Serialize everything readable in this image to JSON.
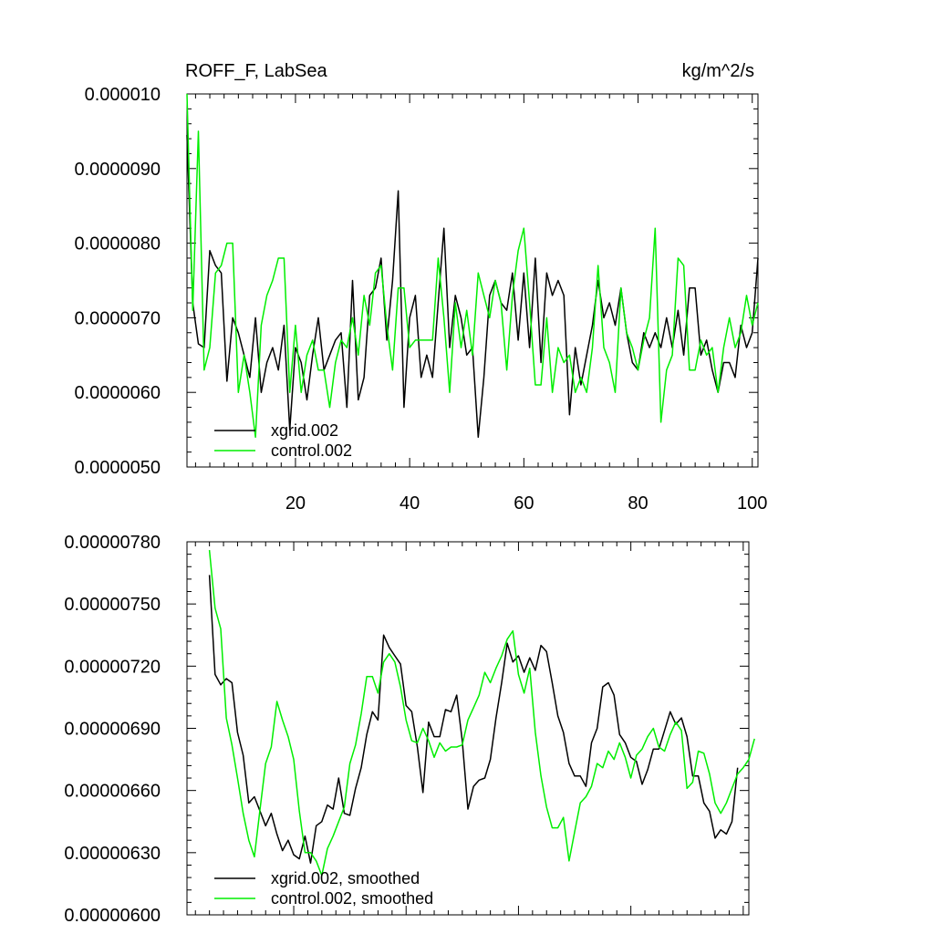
{
  "colors": {
    "xgrid": "#000000",
    "control": "#00ee00"
  },
  "chart_data": [
    {
      "type": "line",
      "title": "ROFF_F, LabSea",
      "units": "kg/m^2/s",
      "xlim": [
        1,
        101
      ],
      "ylim": [
        5e-06,
        1e-05
      ],
      "xticks": [
        20,
        40,
        60,
        80,
        100
      ],
      "xtick_labels": [
        "20",
        "40",
        "60",
        "80",
        "100"
      ],
      "yticks": [
        5e-06,
        6e-06,
        7e-06,
        8e-06,
        9e-06,
        1e-05
      ],
      "ytick_labels": [
        "0.0000050",
        "0.0000060",
        "0.0000070",
        "0.0000080",
        "0.0000090",
        "0.000010"
      ],
      "legend": "bottom-left",
      "series": [
        {
          "name": "xgrid.002",
          "color": "#000000",
          "x_start": 1,
          "values": [
            9.45e-06,
            7.2e-06,
            6.65e-06,
            6.6e-06,
            7.9e-06,
            7.7e-06,
            7.6e-06,
            6.15e-06,
            7e-06,
            6.8e-06,
            6.5e-06,
            6.2e-06,
            7e-06,
            6e-06,
            6.4e-06,
            6.6e-06,
            6.3e-06,
            6.9e-06,
            5.5e-06,
            6.6e-06,
            6.4e-06,
            5.9e-06,
            6.5e-06,
            7e-06,
            6.3e-06,
            6.5e-06,
            6.7e-06,
            6.8e-06,
            5.8e-06,
            7.5e-06,
            5.9e-06,
            6.2e-06,
            7.3e-06,
            7.4e-06,
            7.8e-06,
            6.7e-06,
            7.5e-06,
            8.7e-06,
            5.8e-06,
            7e-06,
            7.3e-06,
            6.2e-06,
            6.5e-06,
            6.2e-06,
            7.2e-06,
            8.2e-06,
            6.6e-06,
            7.3e-06,
            7e-06,
            6.5e-06,
            6.6e-06,
            5.4e-06,
            6.2e-06,
            7.3e-06,
            7.5e-06,
            7.2e-06,
            7.1e-06,
            7.6e-06,
            6.7e-06,
            7.6e-06,
            6.6e-06,
            7.8e-06,
            6.4e-06,
            7.6e-06,
            7.3e-06,
            7.5e-06,
            7.3e-06,
            5.7e-06,
            6.6e-06,
            6.1e-06,
            6.5e-06,
            6.9e-06,
            7.5e-06,
            7e-06,
            7.2e-06,
            6.9e-06,
            7.4e-06,
            6.8e-06,
            6.4e-06,
            6.3e-06,
            6.8e-06,
            6.6e-06,
            6.8e-06,
            6.6e-06,
            7e-06,
            6.6e-06,
            7.1e-06,
            6.5e-06,
            7.4e-06,
            7.4e-06,
            6.5e-06,
            6.7e-06,
            6.3e-06,
            6e-06,
            6.4e-06,
            6.4e-06,
            6.2e-06,
            6.9e-06,
            6.6e-06,
            6.8e-06,
            7.8e-06
          ]
        },
        {
          "name": "control.002",
          "color": "#00ee00",
          "x_start": 1,
          "values": [
            1e-05,
            7.1e-06,
            9.5e-06,
            6.3e-06,
            6.6e-06,
            7.6e-06,
            7.7e-06,
            8e-06,
            8e-06,
            6e-06,
            6.5e-06,
            6e-06,
            5.4e-06,
            6.9e-06,
            7.3e-06,
            7.5e-06,
            7.8e-06,
            7.8e-06,
            6e-06,
            6.9e-06,
            6e-06,
            6.5e-06,
            6.7e-06,
            6.3e-06,
            6.3e-06,
            5.8e-06,
            6.4e-06,
            6.7e-06,
            6.6e-06,
            7e-06,
            6.5e-06,
            7.3e-06,
            6.9e-06,
            7.6e-06,
            7.7e-06,
            6.9e-06,
            6.3e-06,
            7.4e-06,
            7.4e-06,
            6.6e-06,
            6.7e-06,
            6.7e-06,
            6.7e-06,
            6.7e-06,
            7.8e-06,
            7e-06,
            6e-06,
            7.2e-06,
            6.6e-06,
            7.1e-06,
            6.5e-06,
            7.6e-06,
            7.3e-06,
            7e-06,
            7.5e-06,
            7.2e-06,
            6.3e-06,
            7.3e-06,
            7.9e-06,
            8.2e-06,
            7.2e-06,
            6.1e-06,
            6.1e-06,
            7e-06,
            6e-06,
            6.6e-06,
            6.4e-06,
            6.5e-06,
            6e-06,
            6.2e-06,
            6e-06,
            6.6e-06,
            7.7e-06,
            6.6e-06,
            6.4e-06,
            6e-06,
            7.4e-06,
            6.8e-06,
            6.6e-06,
            6.3e-06,
            6.7e-06,
            7e-06,
            8.2e-06,
            5.6e-06,
            6.3e-06,
            6.5e-06,
            7.8e-06,
            7.7e-06,
            6.3e-06,
            6.3e-06,
            6.7e-06,
            6.5e-06,
            6.6e-06,
            6e-06,
            6.6e-06,
            7e-06,
            6.6e-06,
            6.8e-06,
            7.3e-06,
            6.9e-06,
            7.2e-06
          ]
        }
      ]
    },
    {
      "type": "line",
      "title": "",
      "xlim": [
        1,
        101
      ],
      "ylim": [
        6e-06,
        7.8e-06
      ],
      "xticks": [
        20,
        40,
        60,
        80,
        100
      ],
      "xtick_labels": [],
      "yticks": [
        6e-06,
        6.3e-06,
        6.6e-06,
        6.9e-06,
        7.2e-06,
        7.5e-06,
        7.8e-06
      ],
      "ytick_labels": [
        "0.00000600",
        "0.00000630",
        "0.00000660",
        "0.00000690",
        "0.00000720",
        "0.00000750",
        "0.00000780"
      ],
      "legend": "bottom-left",
      "series": [
        {
          "name": "xgrid.002, smoothed",
          "color": "#000000",
          "x_start": 5,
          "values": [
            7.64e-06,
            7.16e-06,
            7.11e-06,
            7.14e-06,
            7.12e-06,
            6.88e-06,
            6.77e-06,
            6.54e-06,
            6.57e-06,
            6.5e-06,
            6.43e-06,
            6.49e-06,
            6.39e-06,
            6.31e-06,
            6.36e-06,
            6.29e-06,
            6.27e-06,
            6.38e-06,
            6.25e-06,
            6.43e-06,
            6.45e-06,
            6.53e-06,
            6.51e-06,
            6.66e-06,
            6.49e-06,
            6.48e-06,
            6.61e-06,
            6.71e-06,
            6.87e-06,
            6.98e-06,
            6.94e-06,
            7.35e-06,
            7.29e-06,
            7.25e-06,
            7.21e-06,
            7.01e-06,
            6.98e-06,
            6.81e-06,
            6.59e-06,
            6.93e-06,
            6.86e-06,
            6.86e-06,
            6.99e-06,
            6.98e-06,
            7.06e-06,
            6.84e-06,
            6.51e-06,
            6.62e-06,
            6.65e-06,
            6.66e-06,
            6.75e-06,
            6.95e-06,
            7.12e-06,
            7.31e-06,
            7.22e-06,
            7.25e-06,
            7.17e-06,
            7.24e-06,
            7.18e-06,
            7.3e-06,
            7.27e-06,
            7.12e-06,
            6.96e-06,
            6.88e-06,
            6.73e-06,
            6.67e-06,
            6.67e-06,
            6.62e-06,
            6.83e-06,
            6.9e-06,
            7.1e-06,
            7.12e-06,
            7.06e-06,
            6.87e-06,
            6.83e-06,
            6.76e-06,
            6.74e-06,
            6.63e-06,
            6.7e-06,
            6.8e-06,
            6.8e-06,
            6.89e-06,
            6.98e-06,
            6.92e-06,
            6.95e-06,
            6.86e-06,
            6.67e-06,
            6.67e-06,
            6.54e-06,
            6.5e-06,
            6.37e-06,
            6.41e-06,
            6.39e-06,
            6.45e-06,
            6.71e-06
          ]
        },
        {
          "name": "control.002, smoothed",
          "color": "#00ee00",
          "x_start": 5,
          "values": [
            7.76e-06,
            7.48e-06,
            7.38e-06,
            6.95e-06,
            6.82e-06,
            6.66e-06,
            6.49e-06,
            6.36e-06,
            6.28e-06,
            6.51e-06,
            6.73e-06,
            6.81e-06,
            7.03e-06,
            6.94e-06,
            6.86e-06,
            6.75e-06,
            6.5e-06,
            6.3e-06,
            6.3e-06,
            6.26e-06,
            6.19e-06,
            6.32e-06,
            6.38e-06,
            6.45e-06,
            6.52e-06,
            6.73e-06,
            6.82e-06,
            6.97e-06,
            7.15e-06,
            7.15e-06,
            7.07e-06,
            7.22e-06,
            7.26e-06,
            7.22e-06,
            7.1e-06,
            6.94e-06,
            6.84e-06,
            6.83e-06,
            6.9e-06,
            6.84e-06,
            6.76e-06,
            6.83e-06,
            6.79e-06,
            6.81e-06,
            6.81e-06,
            6.82e-06,
            6.94e-06,
            7e-06,
            7.06e-06,
            7.17e-06,
            7.12e-06,
            7.19e-06,
            7.25e-06,
            7.33e-06,
            7.37e-06,
            7.16e-06,
            7.07e-06,
            7.19e-06,
            6.88e-06,
            6.67e-06,
            6.52e-06,
            6.42e-06,
            6.42e-06,
            6.47e-06,
            6.26e-06,
            6.4e-06,
            6.54e-06,
            6.57e-06,
            6.62e-06,
            6.73e-06,
            6.71e-06,
            6.79e-06,
            6.75e-06,
            6.83e-06,
            6.76e-06,
            6.66e-06,
            6.77e-06,
            6.8e-06,
            6.86e-06,
            6.9e-06,
            6.81e-06,
            6.79e-06,
            6.87e-06,
            6.93e-06,
            6.89e-06,
            6.61e-06,
            6.64e-06,
            6.79e-06,
            6.78e-06,
            6.68e-06,
            6.54e-06,
            6.49e-06,
            6.54e-06,
            6.61e-06,
            6.68e-06,
            6.71e-06,
            6.75e-06,
            6.85e-06
          ]
        }
      ]
    }
  ]
}
